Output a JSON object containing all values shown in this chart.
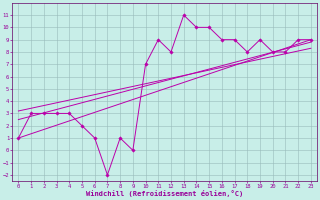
{
  "xlabel": "Windchill (Refroidissement éolien,°C)",
  "bg_color": "#c8eee8",
  "line_color": "#bb00aa",
  "grid_color": "#99bbbb",
  "x_data": [
    0,
    1,
    2,
    3,
    4,
    5,
    6,
    7,
    8,
    9,
    10,
    11,
    12,
    13,
    14,
    15,
    16,
    17,
    18,
    19,
    20,
    21,
    22,
    23
  ],
  "y_main": [
    1,
    3,
    3,
    3,
    3,
    2,
    1,
    -2,
    1,
    0,
    7,
    9,
    8,
    11,
    10,
    10,
    9,
    9,
    8,
    9,
    8,
    8,
    9,
    9
  ],
  "trend_lines": [
    {
      "x": [
        0,
        23
      ],
      "y": [
        1.0,
        9.0
      ]
    },
    {
      "x": [
        0,
        23
      ],
      "y": [
        2.5,
        8.8
      ]
    },
    {
      "x": [
        0,
        23
      ],
      "y": [
        3.2,
        8.3
      ]
    }
  ],
  "ylim": [
    -2.5,
    12
  ],
  "xlim": [
    -0.5,
    23.5
  ],
  "yticks": [
    -2,
    -1,
    0,
    1,
    2,
    3,
    4,
    5,
    6,
    7,
    8,
    9,
    10,
    11
  ],
  "xticks": [
    0,
    1,
    2,
    3,
    4,
    5,
    6,
    7,
    8,
    9,
    10,
    11,
    12,
    13,
    14,
    15,
    16,
    17,
    18,
    19,
    20,
    21,
    22,
    23
  ],
  "tick_color": "#990099",
  "spine_color": "#660066",
  "xlabel_fontsize": 5.0,
  "tick_fontsize": 4.0,
  "line_width": 0.7,
  "marker_size": 1.8
}
